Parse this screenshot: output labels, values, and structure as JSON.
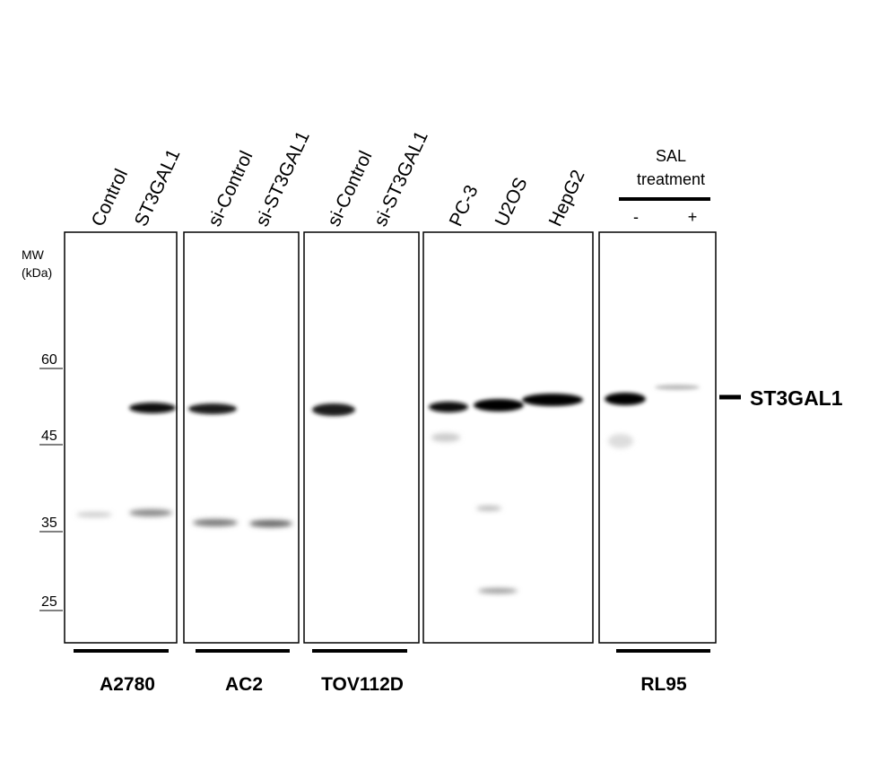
{
  "mw_label": {
    "title": "MW",
    "unit": "(kDa)"
  },
  "markers": [
    "60",
    "45",
    "35",
    "25"
  ],
  "target": "ST3GAL1",
  "treatment": {
    "line1": "SAL",
    "line2": "treatment",
    "minus": "-",
    "plus": "+"
  },
  "lanes": [
    "Control",
    "ST3GAL1",
    "si-Control",
    "si-ST3GAL1",
    "si-Control",
    "si-ST3GAL1",
    "PC-3",
    "U2OS",
    "HepG2"
  ],
  "cell_lines": [
    "A2780",
    "AC2",
    "TOV112D",
    "RL95"
  ]
}
